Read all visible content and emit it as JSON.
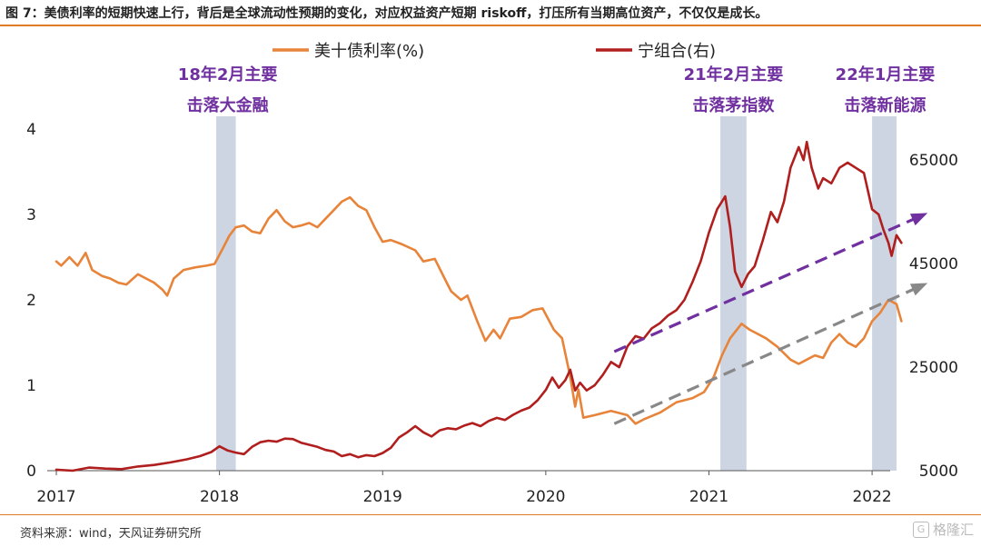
{
  "header": {
    "title": "图 7：美债利率的短期快速上行，背后是全球流动性预期的变化，对应权益资产短期 riskoff，打压所有当期高位资产，不仅仅是成长。"
  },
  "footer": {
    "source": "资料来源：wind，天风证券研究所",
    "watermark": "格隆汇"
  },
  "colors": {
    "accent": "#e07b27",
    "treasury": "#e8843a",
    "ning": "#b01e1e",
    "annotation": "#7030a0",
    "band": "#cdd5e3",
    "trend_gray": "#888888"
  },
  "chart_data": {
    "type": "line",
    "title": "",
    "xlabel": "",
    "ylabel_left": "",
    "ylabel_right": "",
    "x_range": [
      2017.0,
      2022.25
    ],
    "x_ticks": [
      2017,
      2018,
      2019,
      2020,
      2021,
      2022
    ],
    "x_tick_labels": [
      "2017",
      "2018",
      "2019",
      "2020",
      "2021",
      "2022"
    ],
    "ylim_left": [
      0,
      4
    ],
    "y_ticks_left": [
      0,
      1,
      2,
      3,
      4
    ],
    "y_tick_labels_left": [
      "0",
      "1",
      "2",
      "3",
      "4"
    ],
    "ylim_right": [
      5000,
      71000
    ],
    "y_ticks_right": [
      5000,
      25000,
      45000,
      65000
    ],
    "y_tick_labels_right": [
      "5000",
      "25000",
      "45000",
      "65000"
    ],
    "grid": false,
    "legend_position": "top-center",
    "series": [
      {
        "name": "美十债利率(%)",
        "axis": "left",
        "points": [
          [
            2017.0,
            2.45
          ],
          [
            2017.03,
            2.4
          ],
          [
            2017.08,
            2.5
          ],
          [
            2017.13,
            2.4
          ],
          [
            2017.18,
            2.55
          ],
          [
            2017.22,
            2.35
          ],
          [
            2017.28,
            2.28
          ],
          [
            2017.33,
            2.25
          ],
          [
            2017.38,
            2.2
          ],
          [
            2017.43,
            2.18
          ],
          [
            2017.5,
            2.3
          ],
          [
            2017.55,
            2.25
          ],
          [
            2017.6,
            2.2
          ],
          [
            2017.65,
            2.12
          ],
          [
            2017.68,
            2.05
          ],
          [
            2017.72,
            2.25
          ],
          [
            2017.78,
            2.35
          ],
          [
            2017.85,
            2.38
          ],
          [
            2017.92,
            2.4
          ],
          [
            2017.97,
            2.42
          ],
          [
            2018.02,
            2.6
          ],
          [
            2018.06,
            2.75
          ],
          [
            2018.1,
            2.85
          ],
          [
            2018.15,
            2.87
          ],
          [
            2018.2,
            2.8
          ],
          [
            2018.25,
            2.78
          ],
          [
            2018.3,
            2.95
          ],
          [
            2018.35,
            3.05
          ],
          [
            2018.4,
            2.92
          ],
          [
            2018.45,
            2.85
          ],
          [
            2018.5,
            2.87
          ],
          [
            2018.55,
            2.9
          ],
          [
            2018.6,
            2.85
          ],
          [
            2018.65,
            2.95
          ],
          [
            2018.7,
            3.05
          ],
          [
            2018.75,
            3.15
          ],
          [
            2018.8,
            3.2
          ],
          [
            2018.85,
            3.1
          ],
          [
            2018.9,
            3.05
          ],
          [
            2018.95,
            2.85
          ],
          [
            2019.0,
            2.68
          ],
          [
            2019.05,
            2.7
          ],
          [
            2019.12,
            2.65
          ],
          [
            2019.2,
            2.58
          ],
          [
            2019.25,
            2.45
          ],
          [
            2019.32,
            2.48
          ],
          [
            2019.38,
            2.25
          ],
          [
            2019.42,
            2.1
          ],
          [
            2019.48,
            2.0
          ],
          [
            2019.52,
            2.05
          ],
          [
            2019.58,
            1.75
          ],
          [
            2019.63,
            1.52
          ],
          [
            2019.68,
            1.65
          ],
          [
            2019.72,
            1.55
          ],
          [
            2019.78,
            1.78
          ],
          [
            2019.85,
            1.8
          ],
          [
            2019.92,
            1.88
          ],
          [
            2019.98,
            1.9
          ],
          [
            2020.05,
            1.65
          ],
          [
            2020.1,
            1.55
          ],
          [
            2020.15,
            1.1
          ],
          [
            2020.18,
            0.75
          ],
          [
            2020.2,
            0.95
          ],
          [
            2020.23,
            0.62
          ],
          [
            2020.3,
            0.65
          ],
          [
            2020.4,
            0.7
          ],
          [
            2020.5,
            0.65
          ],
          [
            2020.55,
            0.55
          ],
          [
            2020.6,
            0.6
          ],
          [
            2020.7,
            0.68
          ],
          [
            2020.8,
            0.8
          ],
          [
            2020.9,
            0.85
          ],
          [
            2020.97,
            0.92
          ],
          [
            2021.03,
            1.1
          ],
          [
            2021.08,
            1.35
          ],
          [
            2021.13,
            1.55
          ],
          [
            2021.2,
            1.72
          ],
          [
            2021.25,
            1.65
          ],
          [
            2021.3,
            1.6
          ],
          [
            2021.35,
            1.55
          ],
          [
            2021.42,
            1.45
          ],
          [
            2021.5,
            1.3
          ],
          [
            2021.55,
            1.25
          ],
          [
            2021.6,
            1.3
          ],
          [
            2021.65,
            1.35
          ],
          [
            2021.7,
            1.32
          ],
          [
            2021.75,
            1.5
          ],
          [
            2021.8,
            1.6
          ],
          [
            2021.85,
            1.5
          ],
          [
            2021.9,
            1.45
          ],
          [
            2021.95,
            1.55
          ],
          [
            2022.0,
            1.75
          ],
          [
            2022.05,
            1.85
          ],
          [
            2022.1,
            2.0
          ],
          [
            2022.15,
            1.95
          ],
          [
            2022.18,
            1.75
          ]
        ]
      },
      {
        "name": "宁组合(右)",
        "axis": "right",
        "points": [
          [
            2017.0,
            5200
          ],
          [
            2017.1,
            5000
          ],
          [
            2017.2,
            5600
          ],
          [
            2017.3,
            5400
          ],
          [
            2017.4,
            5300
          ],
          [
            2017.5,
            5800
          ],
          [
            2017.6,
            6100
          ],
          [
            2017.7,
            6600
          ],
          [
            2017.8,
            7200
          ],
          [
            2017.88,
            7800
          ],
          [
            2017.95,
            8600
          ],
          [
            2018.0,
            9700
          ],
          [
            2018.05,
            8900
          ],
          [
            2018.1,
            8500
          ],
          [
            2018.15,
            8200
          ],
          [
            2018.2,
            9600
          ],
          [
            2018.25,
            10500
          ],
          [
            2018.3,
            10800
          ],
          [
            2018.35,
            10600
          ],
          [
            2018.4,
            11200
          ],
          [
            2018.45,
            11100
          ],
          [
            2018.5,
            10400
          ],
          [
            2018.55,
            10000
          ],
          [
            2018.6,
            9600
          ],
          [
            2018.65,
            9000
          ],
          [
            2018.7,
            8700
          ],
          [
            2018.75,
            7800
          ],
          [
            2018.8,
            8200
          ],
          [
            2018.85,
            7600
          ],
          [
            2018.9,
            8000
          ],
          [
            2018.95,
            7800
          ],
          [
            2019.0,
            8400
          ],
          [
            2019.05,
            9400
          ],
          [
            2019.1,
            11400
          ],
          [
            2019.15,
            12400
          ],
          [
            2019.2,
            13600
          ],
          [
            2019.25,
            12400
          ],
          [
            2019.3,
            11600
          ],
          [
            2019.35,
            12800
          ],
          [
            2019.4,
            13200
          ],
          [
            2019.45,
            13000
          ],
          [
            2019.5,
            13700
          ],
          [
            2019.55,
            14200
          ],
          [
            2019.6,
            13600
          ],
          [
            2019.65,
            14600
          ],
          [
            2019.7,
            15200
          ],
          [
            2019.75,
            14800
          ],
          [
            2019.8,
            15800
          ],
          [
            2019.85,
            16600
          ],
          [
            2019.9,
            17200
          ],
          [
            2019.95,
            18600
          ],
          [
            2020.0,
            20600
          ],
          [
            2020.04,
            23000
          ],
          [
            2020.08,
            21000
          ],
          [
            2020.12,
            22500
          ],
          [
            2020.15,
            24500
          ],
          [
            2020.18,
            20500
          ],
          [
            2020.21,
            22000
          ],
          [
            2020.25,
            20500
          ],
          [
            2020.3,
            21500
          ],
          [
            2020.35,
            23500
          ],
          [
            2020.4,
            26000
          ],
          [
            2020.45,
            25000
          ],
          [
            2020.5,
            29000
          ],
          [
            2020.55,
            31000
          ],
          [
            2020.6,
            30500
          ],
          [
            2020.65,
            32500
          ],
          [
            2020.7,
            33500
          ],
          [
            2020.75,
            35000
          ],
          [
            2020.8,
            36000
          ],
          [
            2020.85,
            38000
          ],
          [
            2020.9,
            41500
          ],
          [
            2020.95,
            45500
          ],
          [
            2021.0,
            51000
          ],
          [
            2021.05,
            55500
          ],
          [
            2021.1,
            58000
          ],
          [
            2021.13,
            52000
          ],
          [
            2021.16,
            43500
          ],
          [
            2021.2,
            40500
          ],
          [
            2021.24,
            43000
          ],
          [
            2021.28,
            44500
          ],
          [
            2021.33,
            49500
          ],
          [
            2021.38,
            55000
          ],
          [
            2021.42,
            53000
          ],
          [
            2021.46,
            57000
          ],
          [
            2021.5,
            63500
          ],
          [
            2021.55,
            67500
          ],
          [
            2021.58,
            65000
          ],
          [
            2021.6,
            68500
          ],
          [
            2021.63,
            63500
          ],
          [
            2021.67,
            59500
          ],
          [
            2021.7,
            61500
          ],
          [
            2021.75,
            60500
          ],
          [
            2021.8,
            63500
          ],
          [
            2021.85,
            64500
          ],
          [
            2021.9,
            63500
          ],
          [
            2021.95,
            62500
          ],
          [
            2022.0,
            55500
          ],
          [
            2022.04,
            54500
          ],
          [
            2022.07,
            51500
          ],
          [
            2022.1,
            49000
          ],
          [
            2022.12,
            46500
          ],
          [
            2022.15,
            50500
          ],
          [
            2022.18,
            49000
          ]
        ]
      }
    ],
    "shaded_periods": [
      {
        "start": 2017.98,
        "end": 2018.1
      },
      {
        "start": 2021.07,
        "end": 2021.23
      },
      {
        "start": 2022.0,
        "end": 2022.15
      }
    ],
    "annotations": [
      {
        "lines": [
          "18年2月主要",
          "击落大金融"
        ],
        "x": 2018.05
      },
      {
        "lines": [
          "21年2月主要",
          "击落茅指数"
        ],
        "x": 2021.15
      },
      {
        "lines": [
          "22年1月主要",
          "击落新能源"
        ],
        "x": 2022.08
      }
    ],
    "trend_lines": [
      {
        "color": "purple",
        "axis": "right",
        "from": [
          2020.42,
          28000
        ],
        "to": [
          2022.32,
          54500
        ]
      },
      {
        "color": "gray",
        "axis": "left",
        "from": [
          2020.42,
          0.55
        ],
        "to": [
          2022.32,
          2.18
        ]
      }
    ]
  }
}
